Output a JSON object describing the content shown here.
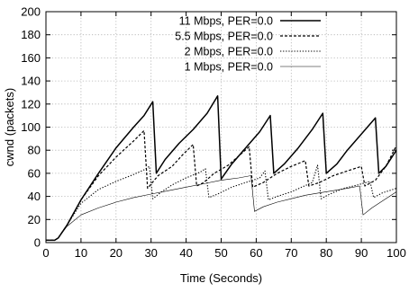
{
  "chart_data": {
    "type": "line",
    "title": "",
    "xlabel": "Time (Seconds)",
    "ylabel": "cwnd (packets)",
    "xlim": [
      0,
      100
    ],
    "ylim": [
      0,
      200
    ],
    "xticks": [
      0,
      10,
      20,
      30,
      40,
      50,
      60,
      70,
      80,
      90,
      100
    ],
    "yticks": [
      0,
      20,
      40,
      60,
      80,
      100,
      120,
      140,
      160,
      180,
      200
    ],
    "grid": true,
    "legend_position": "top-right",
    "series": [
      {
        "name": "11 Mbps, PER=0.0",
        "style": "solid",
        "color": "#000000",
        "points": [
          [
            0,
            2
          ],
          [
            2.5,
            2
          ],
          [
            3.5,
            4
          ],
          [
            6,
            15
          ],
          [
            10,
            37
          ],
          [
            15,
            60
          ],
          [
            20,
            82
          ],
          [
            25,
            100
          ],
          [
            28,
            110
          ],
          [
            30.5,
            122
          ],
          [
            31.5,
            60
          ],
          [
            34,
            72
          ],
          [
            38,
            86
          ],
          [
            42,
            98
          ],
          [
            46,
            112
          ],
          [
            49,
            127
          ],
          [
            50,
            55
          ],
          [
            53,
            68
          ],
          [
            57,
            82
          ],
          [
            61,
            96
          ],
          [
            64,
            110
          ],
          [
            65,
            60
          ],
          [
            68,
            68
          ],
          [
            72,
            82
          ],
          [
            76,
            98
          ],
          [
            79,
            112
          ],
          [
            80,
            60
          ],
          [
            83,
            68
          ],
          [
            86,
            80
          ],
          [
            90,
            94
          ],
          [
            94,
            108
          ],
          [
            95,
            60
          ],
          [
            97,
            66
          ],
          [
            100,
            80
          ]
        ]
      },
      {
        "name": "5.5 Mbps, PER=0.0",
        "style": "dashed",
        "color": "#000000",
        "points": [
          [
            0,
            2
          ],
          [
            2.5,
            2
          ],
          [
            3.5,
            4
          ],
          [
            6,
            15
          ],
          [
            10,
            37
          ],
          [
            15,
            58
          ],
          [
            20,
            74
          ],
          [
            25,
            88
          ],
          [
            28,
            97
          ],
          [
            29,
            47
          ],
          [
            32,
            58
          ],
          [
            36,
            66
          ],
          [
            39,
            76
          ],
          [
            42,
            85
          ],
          [
            43,
            49
          ],
          [
            45,
            52
          ],
          [
            48,
            60
          ],
          [
            52,
            67
          ],
          [
            55,
            75
          ],
          [
            58,
            83
          ],
          [
            59,
            48
          ],
          [
            62,
            52
          ],
          [
            66,
            60
          ],
          [
            70,
            66
          ],
          [
            74,
            71
          ],
          [
            75,
            49
          ],
          [
            78,
            52
          ],
          [
            82,
            58
          ],
          [
            86,
            62
          ],
          [
            90,
            66
          ],
          [
            91,
            49
          ],
          [
            94,
            54
          ],
          [
            97,
            66
          ],
          [
            100,
            84
          ]
        ]
      },
      {
        "name": "2 Mbps, PER=0.0",
        "style": "dotted",
        "color": "#000000",
        "points": [
          [
            0,
            2
          ],
          [
            2.5,
            2
          ],
          [
            3.5,
            4
          ],
          [
            6,
            15
          ],
          [
            10,
            34
          ],
          [
            15,
            46
          ],
          [
            20,
            53
          ],
          [
            25,
            59
          ],
          [
            28,
            63
          ],
          [
            29.5,
            66
          ],
          [
            30.5,
            38
          ],
          [
            33,
            44
          ],
          [
            36,
            50
          ],
          [
            40,
            56
          ],
          [
            44,
            61
          ],
          [
            45.5,
            64
          ],
          [
            46.5,
            39
          ],
          [
            49,
            42
          ],
          [
            53,
            48
          ],
          [
            57,
            52
          ],
          [
            61,
            56
          ],
          [
            62.5,
            62
          ],
          [
            63.5,
            37
          ],
          [
            66,
            40
          ],
          [
            70,
            44
          ],
          [
            73,
            48
          ],
          [
            76,
            52
          ],
          [
            77.5,
            67
          ],
          [
            78.5,
            38
          ],
          [
            81,
            42
          ],
          [
            85,
            47
          ],
          [
            89,
            50
          ],
          [
            92.5,
            53
          ],
          [
            93.5,
            39
          ],
          [
            96,
            43
          ],
          [
            100,
            47
          ]
        ]
      },
      {
        "name": "1 Mbps, PER=0.0",
        "style": "thin",
        "color": "#000000",
        "points": [
          [
            0,
            2
          ],
          [
            2.5,
            2
          ],
          [
            3.5,
            4
          ],
          [
            6,
            14
          ],
          [
            10,
            24
          ],
          [
            15,
            30
          ],
          [
            20,
            35
          ],
          [
            25,
            39
          ],
          [
            30,
            42
          ],
          [
            35,
            45
          ],
          [
            40,
            48
          ],
          [
            45,
            51
          ],
          [
            50,
            54
          ],
          [
            55,
            56
          ],
          [
            58.5,
            58
          ],
          [
            59.5,
            27
          ],
          [
            62,
            31
          ],
          [
            66,
            35
          ],
          [
            70,
            38
          ],
          [
            74,
            41
          ],
          [
            78,
            43
          ],
          [
            82,
            45
          ],
          [
            86,
            47
          ],
          [
            89.5,
            49
          ],
          [
            90.5,
            24
          ],
          [
            93,
            30
          ],
          [
            96,
            36
          ],
          [
            100,
            44
          ]
        ]
      }
    ]
  }
}
